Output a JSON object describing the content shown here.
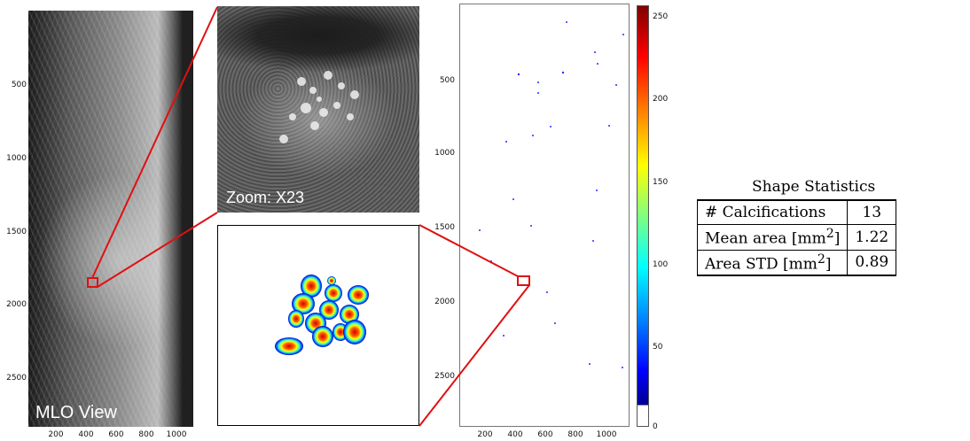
{
  "mlo": {
    "label": "MLO View",
    "y_ticks": [
      "500",
      "1000",
      "1500",
      "2000",
      "2500"
    ],
    "x_ticks": [
      "200",
      "400",
      "600",
      "800",
      "1000"
    ]
  },
  "zoom": {
    "label": "Zoom: X23"
  },
  "map": {
    "y_ticks": [
      "500",
      "1000",
      "1500",
      "2000",
      "2500"
    ],
    "x_ticks": [
      "200",
      "400",
      "600",
      "800",
      "1000"
    ]
  },
  "colorbar": {
    "ticks": [
      "250",
      "200",
      "150",
      "100",
      "50",
      "0"
    ]
  },
  "stats": {
    "title": "Shape Statistics",
    "rows": [
      {
        "label_main": "# Calcifications",
        "label_sup": "",
        "label_end": "",
        "value": "13"
      },
      {
        "label_main": "Mean area [mm",
        "label_sup": "2",
        "label_end": "]",
        "value": "1.22"
      },
      {
        "label_main": "Area STD [mm",
        "label_sup": "2",
        "label_end": "]",
        "value": "0.89"
      }
    ]
  },
  "colors": {
    "callout_line": "#e01010",
    "roi_box": "#e01010"
  }
}
